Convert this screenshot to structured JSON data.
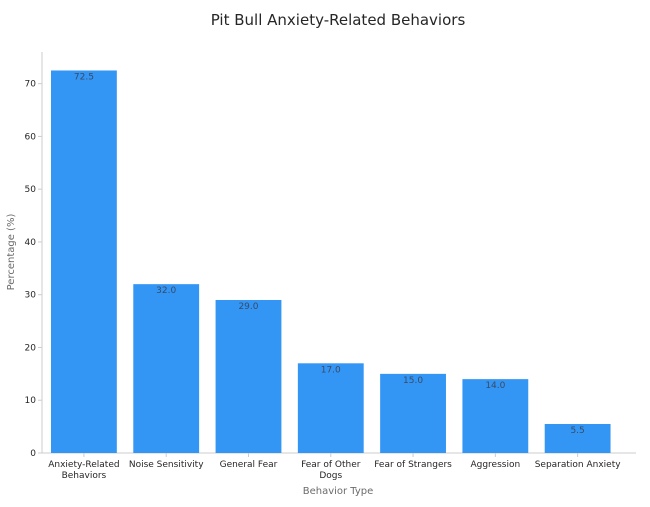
{
  "chart_data": {
    "type": "bar",
    "title": "Pit Bull Anxiety-Related Behaviors",
    "xlabel": "Behavior Type",
    "ylabel": "Percentage (%)",
    "categories": [
      [
        "Anxiety-Related",
        "Behaviors"
      ],
      [
        "Noise Sensitivity"
      ],
      [
        "General Fear"
      ],
      [
        "Fear of Other",
        "Dogs"
      ],
      [
        "Fear of Strangers"
      ],
      [
        "Aggression"
      ],
      [
        "Separation Anxiety"
      ]
    ],
    "values": [
      72.5,
      32.0,
      29.0,
      17.0,
      15.0,
      14.0,
      5.5
    ],
    "data_labels": [
      "72.5",
      "32.0",
      "29.0",
      "17.0",
      "15.0",
      "14.0",
      "5.5"
    ],
    "ylim": [
      0,
      76
    ],
    "yticks": [
      0,
      10,
      20,
      30,
      40,
      50,
      60,
      70
    ],
    "bar_color": "#3396F5",
    "grid": false
  }
}
